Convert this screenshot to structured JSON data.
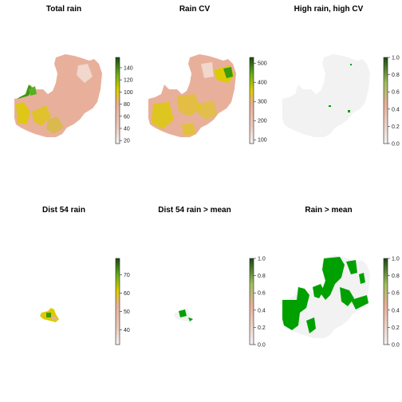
{
  "panels": [
    {
      "title": "Total rain",
      "legend": {
        "ticks": [
          20,
          40,
          60,
          80,
          100,
          120,
          140
        ],
        "range": [
          15,
          157
        ]
      }
    },
    {
      "title": "Rain CV",
      "legend": {
        "ticks": [
          100,
          200,
          300,
          400,
          500
        ],
        "range": [
          80,
          530
        ]
      }
    },
    {
      "title": "High rain, high CV",
      "legend": {
        "ticks": [
          "0.0",
          "0.2",
          "0.4",
          "0.6",
          "0.8",
          "1.0"
        ],
        "range": [
          0,
          1
        ]
      }
    },
    {
      "title": "Dist 54 rain",
      "legend": {
        "ticks": [
          40,
          50,
          60,
          70
        ],
        "range": [
          32,
          79
        ]
      }
    },
    {
      "title": "Dist 54 rain > mean",
      "legend": {
        "ticks": [
          "0.0",
          "0.2",
          "0.4",
          "0.6",
          "0.8",
          "1.0"
        ],
        "range": [
          0,
          1
        ]
      }
    },
    {
      "title": "Rain > mean",
      "legend": {
        "ticks": [
          "0.0",
          "0.2",
          "0.4",
          "0.6",
          "0.8",
          "1.0"
        ],
        "range": [
          0,
          1
        ]
      }
    }
  ],
  "colors": {
    "terrain_low": "#f2f2f2",
    "terrain_mid": "#e8b09a",
    "terrain_high": "#dccb00",
    "terrain_top": "#2a7a10",
    "binary_true": "#00a000",
    "binary_false": "#f2f2f2"
  }
}
